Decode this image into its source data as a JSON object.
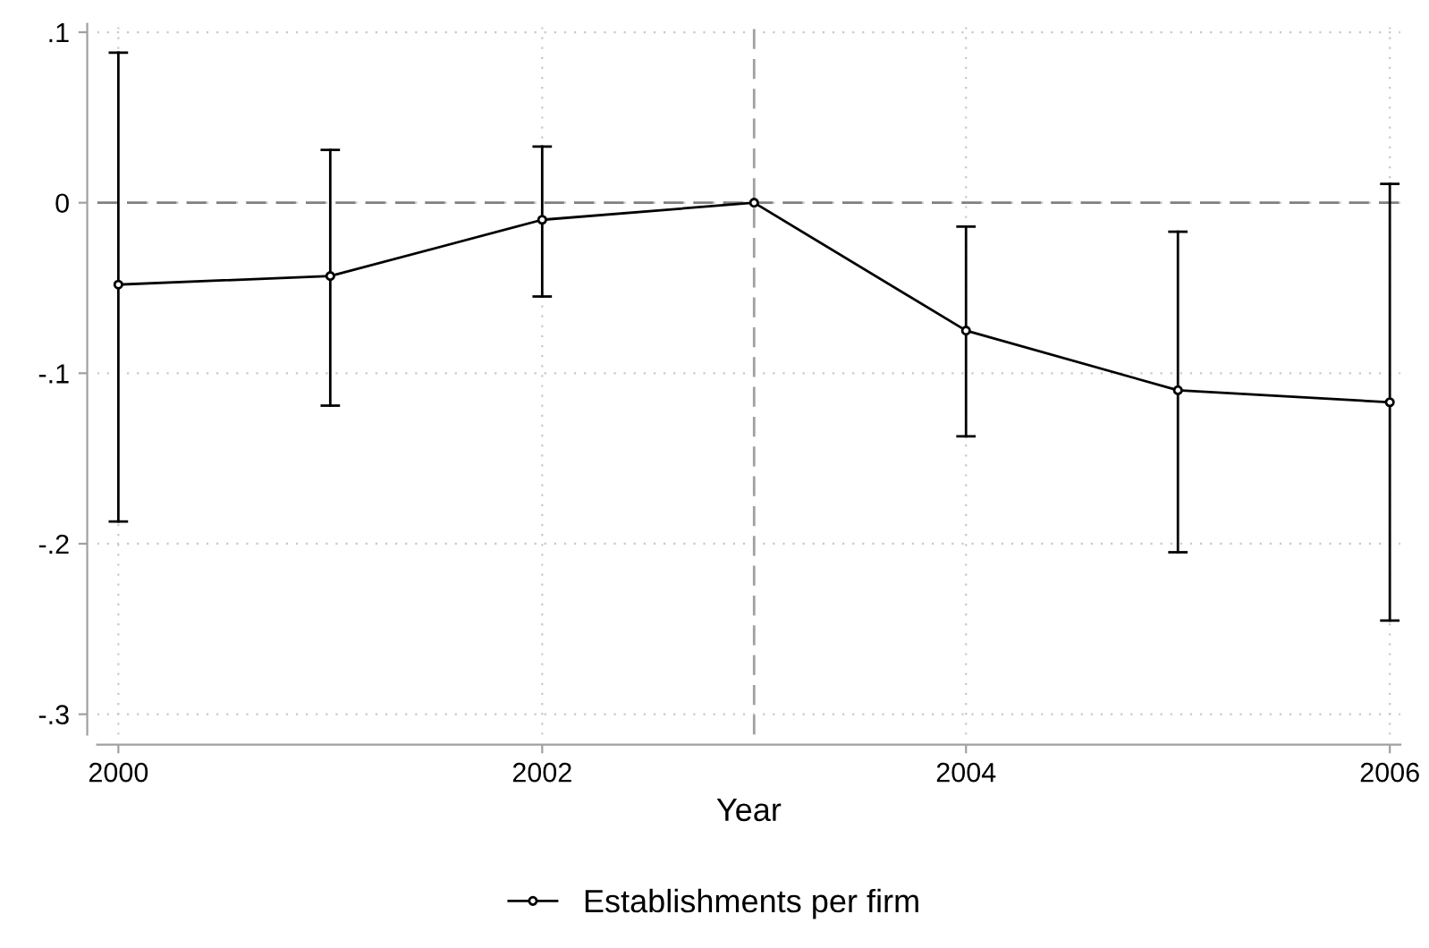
{
  "chart_data": {
    "type": "line",
    "xlabel": "Year",
    "x": [
      2000,
      2001,
      2002,
      2003,
      2004,
      2005,
      2006
    ],
    "series": [
      {
        "name": "Establishments per firm",
        "color": "#000000",
        "values": [
          -0.048,
          -0.043,
          -0.01,
          0,
          -0.075,
          -0.11,
          -0.117
        ],
        "errors": [
          [
            -0.187,
            0.088
          ],
          [
            -0.119,
            0.031
          ],
          [
            -0.055,
            0.033
          ],
          null,
          [
            -0.137,
            -0.014
          ],
          [
            -0.205,
            -0.017
          ],
          [
            -0.245,
            0.011
          ]
        ]
      }
    ],
    "xlim": [
      1999.9,
      2006.05
    ],
    "ylim": [
      -0.312,
      0.105
    ],
    "xticks": [
      2000,
      2002,
      2004,
      2006
    ],
    "yticks": [
      {
        "value": -0.3,
        "label": "-.3"
      },
      {
        "value": -0.2,
        "label": "-.2"
      },
      {
        "value": -0.1,
        "label": "-.1"
      },
      0,
      {
        "value": 0.1,
        "label": ".1"
      }
    ],
    "ref_lines": [
      {
        "axis": "y",
        "value": 0,
        "color": "#808080",
        "line_style": "dashed"
      },
      {
        "axis": "x",
        "value": 2003,
        "color": "#a0a0a0",
        "line_style": "dashed"
      }
    ],
    "grid": true,
    "legend": "bottom",
    "marker": "circle",
    "line_style": "solid"
  }
}
